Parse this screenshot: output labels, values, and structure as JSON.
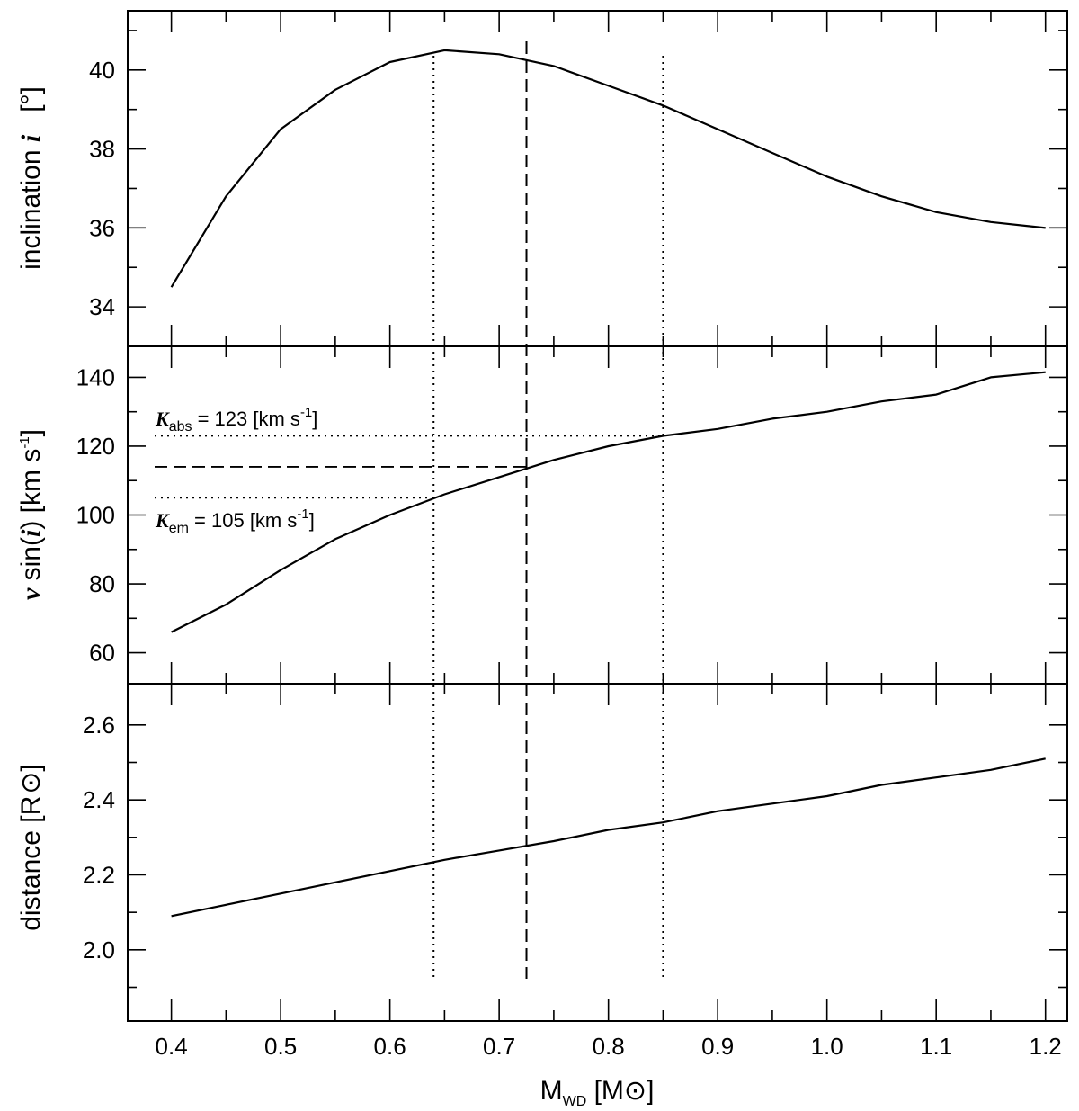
{
  "chart_data": {
    "type": "line",
    "xlabel": {
      "main": "M",
      "sub": "WD",
      "unit_open": " [M",
      "unit_close": "]"
    },
    "xlim": [
      0.36,
      1.22
    ],
    "x_ticks": [
      "0.4",
      "0.5",
      "0.6",
      "0.7",
      "0.8",
      "0.9",
      "1.0",
      "1.1",
      "1.2"
    ],
    "x_ticks_minor": [
      0.45,
      0.55,
      0.65,
      0.75,
      0.85,
      0.95,
      1.05,
      1.15
    ],
    "vertical_lines": [
      {
        "x": 0.64,
        "style": "dotted"
      },
      {
        "x": 0.725,
        "style": "dashed"
      },
      {
        "x": 0.85,
        "style": "dotted"
      }
    ],
    "panels": [
      {
        "id": "inclination",
        "ylabel": {
          "pre": "inclination ",
          "var": "i",
          "post": "   [°]"
        },
        "ylim": [
          33,
          41.5
        ],
        "y_ticks": [
          34,
          36,
          38,
          40
        ],
        "y_minor": [
          35,
          37,
          39,
          41
        ],
        "series": {
          "x": [
            0.4,
            0.45,
            0.5,
            0.55,
            0.6,
            0.65,
            0.7,
            0.75,
            0.8,
            0.85,
            0.9,
            0.95,
            1.0,
            1.05,
            1.1,
            1.15,
            1.2
          ],
          "y": [
            34.5,
            36.8,
            38.5,
            39.5,
            40.2,
            40.5,
            40.4,
            40.1,
            39.6,
            39.1,
            38.5,
            37.9,
            37.3,
            36.8,
            36.4,
            36.15,
            36.0
          ]
        }
      },
      {
        "id": "vsini",
        "ylabel": {
          "var": "v",
          "mid": " sin(",
          "var2": "i",
          "post": ") [km s",
          "exp": "-1",
          "close": "]"
        },
        "ylim": [
          51,
          149
        ],
        "y_ticks": [
          60,
          80,
          100,
          120,
          140
        ],
        "y_minor": [
          70,
          90,
          110,
          130
        ],
        "series": {
          "x": [
            0.4,
            0.45,
            0.5,
            0.55,
            0.6,
            0.65,
            0.7,
            0.75,
            0.8,
            0.85,
            0.9,
            0.95,
            1.0,
            1.05,
            1.1,
            1.15,
            1.2
          ],
          "y": [
            66,
            74,
            84,
            93,
            100,
            106,
            111,
            116,
            120,
            123,
            125,
            128,
            130,
            133,
            135,
            140,
            141.5
          ]
        },
        "hlines": [
          {
            "y": 123,
            "x_end": 0.85,
            "style": "dotted"
          },
          {
            "y": 114,
            "x_end": 0.725,
            "style": "dashed"
          },
          {
            "y": 105,
            "x_end": 0.64,
            "style": "dotted"
          }
        ],
        "annotations": {
          "k_abs": {
            "sym": "K",
            "sub": "abs",
            "text": " = 123 [km s",
            "exp": "-1",
            "close": "]"
          },
          "k_em": {
            "sym": "K",
            "sub": "em",
            "text": " = 105 [km s",
            "exp": "-1",
            "close": "]"
          }
        }
      },
      {
        "id": "distance",
        "ylabel": {
          "pre": "distance [R",
          "post": "]"
        },
        "ylim": [
          1.81,
          2.71
        ],
        "y_ticks": [
          "2.0",
          "2.2",
          "2.4",
          "2.6"
        ],
        "y_minor": [
          1.9,
          2.1,
          2.3,
          2.5
        ],
        "series": {
          "x": [
            0.4,
            0.45,
            0.5,
            0.55,
            0.6,
            0.65,
            0.7,
            0.75,
            0.8,
            0.85,
            0.9,
            0.95,
            1.0,
            1.05,
            1.1,
            1.15,
            1.2
          ],
          "y": [
            2.09,
            2.12,
            2.15,
            2.18,
            2.21,
            2.24,
            2.265,
            2.29,
            2.32,
            2.34,
            2.37,
            2.39,
            2.41,
            2.44,
            2.46,
            2.48,
            2.51
          ]
        }
      }
    ]
  }
}
